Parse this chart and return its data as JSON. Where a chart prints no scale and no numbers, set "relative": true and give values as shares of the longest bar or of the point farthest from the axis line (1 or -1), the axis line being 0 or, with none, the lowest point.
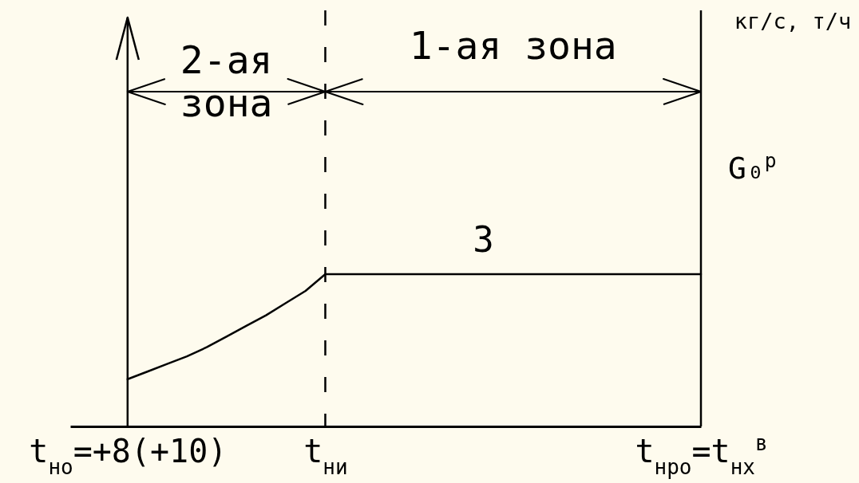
{
  "chart_data": {
    "type": "line",
    "relative": true,
    "categories": [
      "t$_{но}$=+8(+10)",
      null,
      null,
      null,
      null,
      null,
      null,
      null,
      null,
      null,
      "t$_{ни}$",
      null,
      null,
      null,
      null,
      null,
      null,
      null,
      null,
      null,
      null,
      null,
      null,
      null,
      null,
      null,
      null,
      null,
      null,
      "t$_{нро}$=t$_{нх}$$^{в}$"
    ],
    "series": [
      {
        "name": "3",
        "color": "#000000",
        "values": [
          0.31,
          0.36,
          0.41,
          0.46,
          0.52,
          0.59,
          0.66,
          0.73,
          0.81,
          0.89,
          1,
          1,
          1,
          1,
          1,
          1,
          1,
          1,
          1,
          1,
          1,
          1,
          1,
          1,
          1,
          1,
          1,
          1,
          1,
          1
        ]
      }
    ],
    "annotations": [
      "2-ая зона",
      "1-ая зона",
      "кг/с, т/ч",
      "G₀$^{р}$"
    ],
    "ref_lines": [
      {
        "axis": "x",
        "value": "t$_{ни}$",
        "line_style": "dashed"
      },
      {
        "axis": "x",
        "value": "t$_{нро}$=t$_{нх}$$^{в}$",
        "line_style": "solid"
      }
    ]
  }
}
